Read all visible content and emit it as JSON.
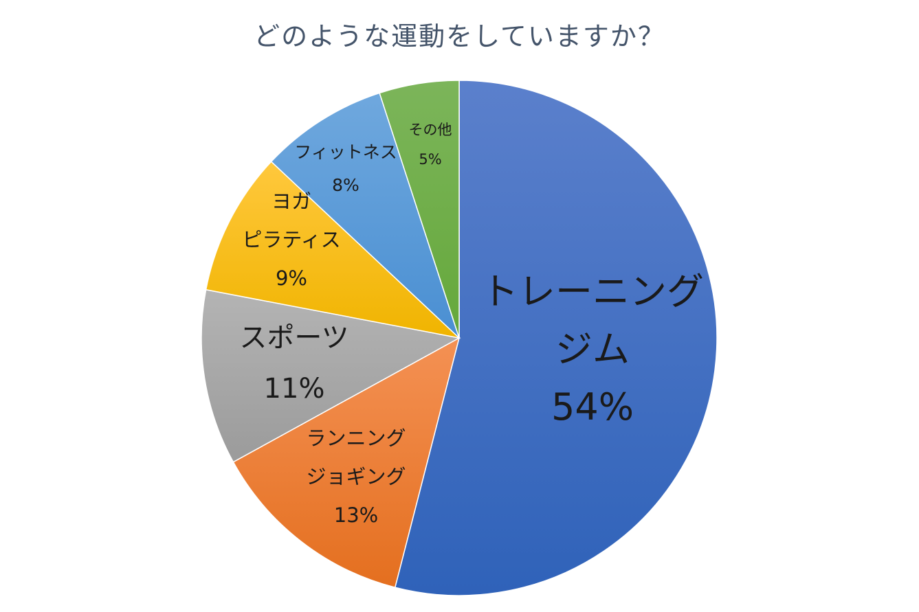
{
  "chart_data": {
    "type": "pie",
    "title": "どのような運動をしていますか？",
    "slices": [
      {
        "label_lines": [
          "トレーニング",
          "ジム"
        ],
        "value": 54,
        "value_label": "54%",
        "color_top": "#5b80cc",
        "color_bottom": "#2f62b9"
      },
      {
        "label_lines": [
          "ランニング",
          "ジョギング"
        ],
        "value": 13,
        "value_label": "13%",
        "color_top": "#f49154",
        "color_bottom": "#e46f1f"
      },
      {
        "label_lines": [
          "スポーツ"
        ],
        "value": 11,
        "value_label": "11%",
        "color_top": "#b4b4b4",
        "color_bottom": "#9b9b9b"
      },
      {
        "label_lines": [
          "ヨガ",
          "ピラティス"
        ],
        "value": 9,
        "value_label": "9%",
        "color_top": "#ffc83d",
        "color_bottom": "#f0b400"
      },
      {
        "label_lines": [
          "フィットネス"
        ],
        "value": 8,
        "value_label": "8%",
        "color_top": "#6fa8de",
        "color_bottom": "#4a8fd2"
      },
      {
        "label_lines": [
          "その他"
        ],
        "value": 5,
        "value_label": "5%",
        "color_top": "#7cb55a",
        "color_bottom": "#65a83b"
      }
    ],
    "start_angle": "12 o'clock",
    "direction": "clockwise"
  }
}
